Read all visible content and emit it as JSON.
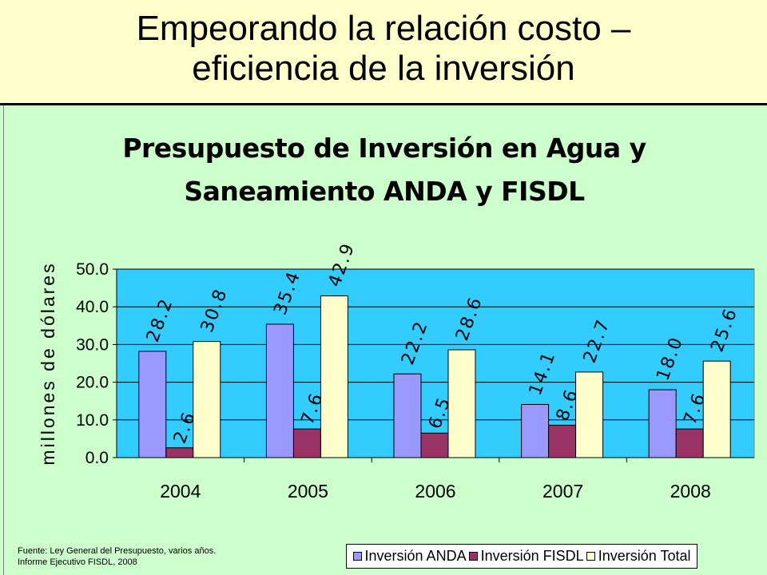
{
  "slide": {
    "title_line_1": "Empeorando la relación costo –",
    "title_line_2": "eficiencia de la inversión"
  },
  "source": {
    "line_1": "Fuente: Ley General  del Presupuesto, varios años.",
    "line_2": "Informe Ejecutivo FISDL, 2008"
  },
  "colors": {
    "slide_background": "#CCFFCC",
    "title_band": "#FFFFCC",
    "plot_background": "#33CCFF",
    "anda": "#9999FF",
    "fisdl": "#993366",
    "total": "#FFFFCC"
  },
  "chart_data": {
    "type": "bar",
    "title_line_1": "Presupuesto de Inversión en Agua y",
    "title_line_2": "Saneamiento ANDA y FISDL",
    "xlabel": "",
    "ylabel": "millones de dólares",
    "categories": [
      "2004",
      "2005",
      "2006",
      "2007",
      "2008"
    ],
    "ylim": [
      0,
      50
    ],
    "yticks": [
      "0.0",
      "10.0",
      "20.0",
      "30.0",
      "40.0",
      "50.0"
    ],
    "grid": true,
    "legend_position": "bottom-right",
    "series": [
      {
        "name": "Inversión ANDA",
        "values": [
          28.2,
          35.4,
          22.2,
          14.1,
          18.0
        ],
        "labels": [
          "28.2",
          "35.4",
          "22.2",
          "14.1",
          "18.0"
        ]
      },
      {
        "name": "Inversión FISDL",
        "values": [
          2.6,
          7.6,
          6.5,
          8.6,
          7.6
        ],
        "labels": [
          "2.6",
          "7.6",
          "6.5",
          "8.6",
          "7.6"
        ]
      },
      {
        "name": "Inversión Total",
        "values": [
          30.8,
          42.9,
          28.6,
          22.7,
          25.6
        ],
        "labels": [
          "30.8",
          "42.9",
          "28.6",
          "22.7",
          "25.6"
        ]
      }
    ]
  }
}
